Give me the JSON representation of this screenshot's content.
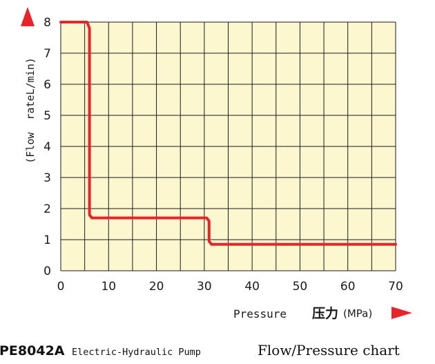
{
  "chart_data": {
    "type": "line",
    "title_model": "PE8042A",
    "title_desc": "Electric-Hydraulic Pump",
    "title_chart": "Flow/Pressure chart",
    "ylabel": "(Flow  rateL/min)",
    "xlabel": "Pressure",
    "xlabel_cn": "压力",
    "xlabel_unit": "(MPa)",
    "xlim": [
      0,
      70
    ],
    "ylim": [
      0,
      8
    ],
    "xticks": [
      "0",
      "10",
      "20",
      "30",
      "40",
      "50",
      "60",
      "70"
    ],
    "yticks": [
      "0",
      "1",
      "2",
      "3",
      "4",
      "5",
      "6",
      "7",
      "8"
    ],
    "grid": true,
    "series": [
      {
        "x": [
          0,
          5.5,
          6,
          6,
          6.5,
          30.5,
          31,
          31,
          31.5,
          70
        ],
        "y": [
          8,
          8,
          7.8,
          1.8,
          1.7,
          1.7,
          1.6,
          0.95,
          0.85,
          0.85
        ]
      }
    ],
    "colors": {
      "plot_bg": "#fdf7d0",
      "grid": "#1a1a1a",
      "line": "#e8242a",
      "arrow": "#e8242a"
    }
  }
}
